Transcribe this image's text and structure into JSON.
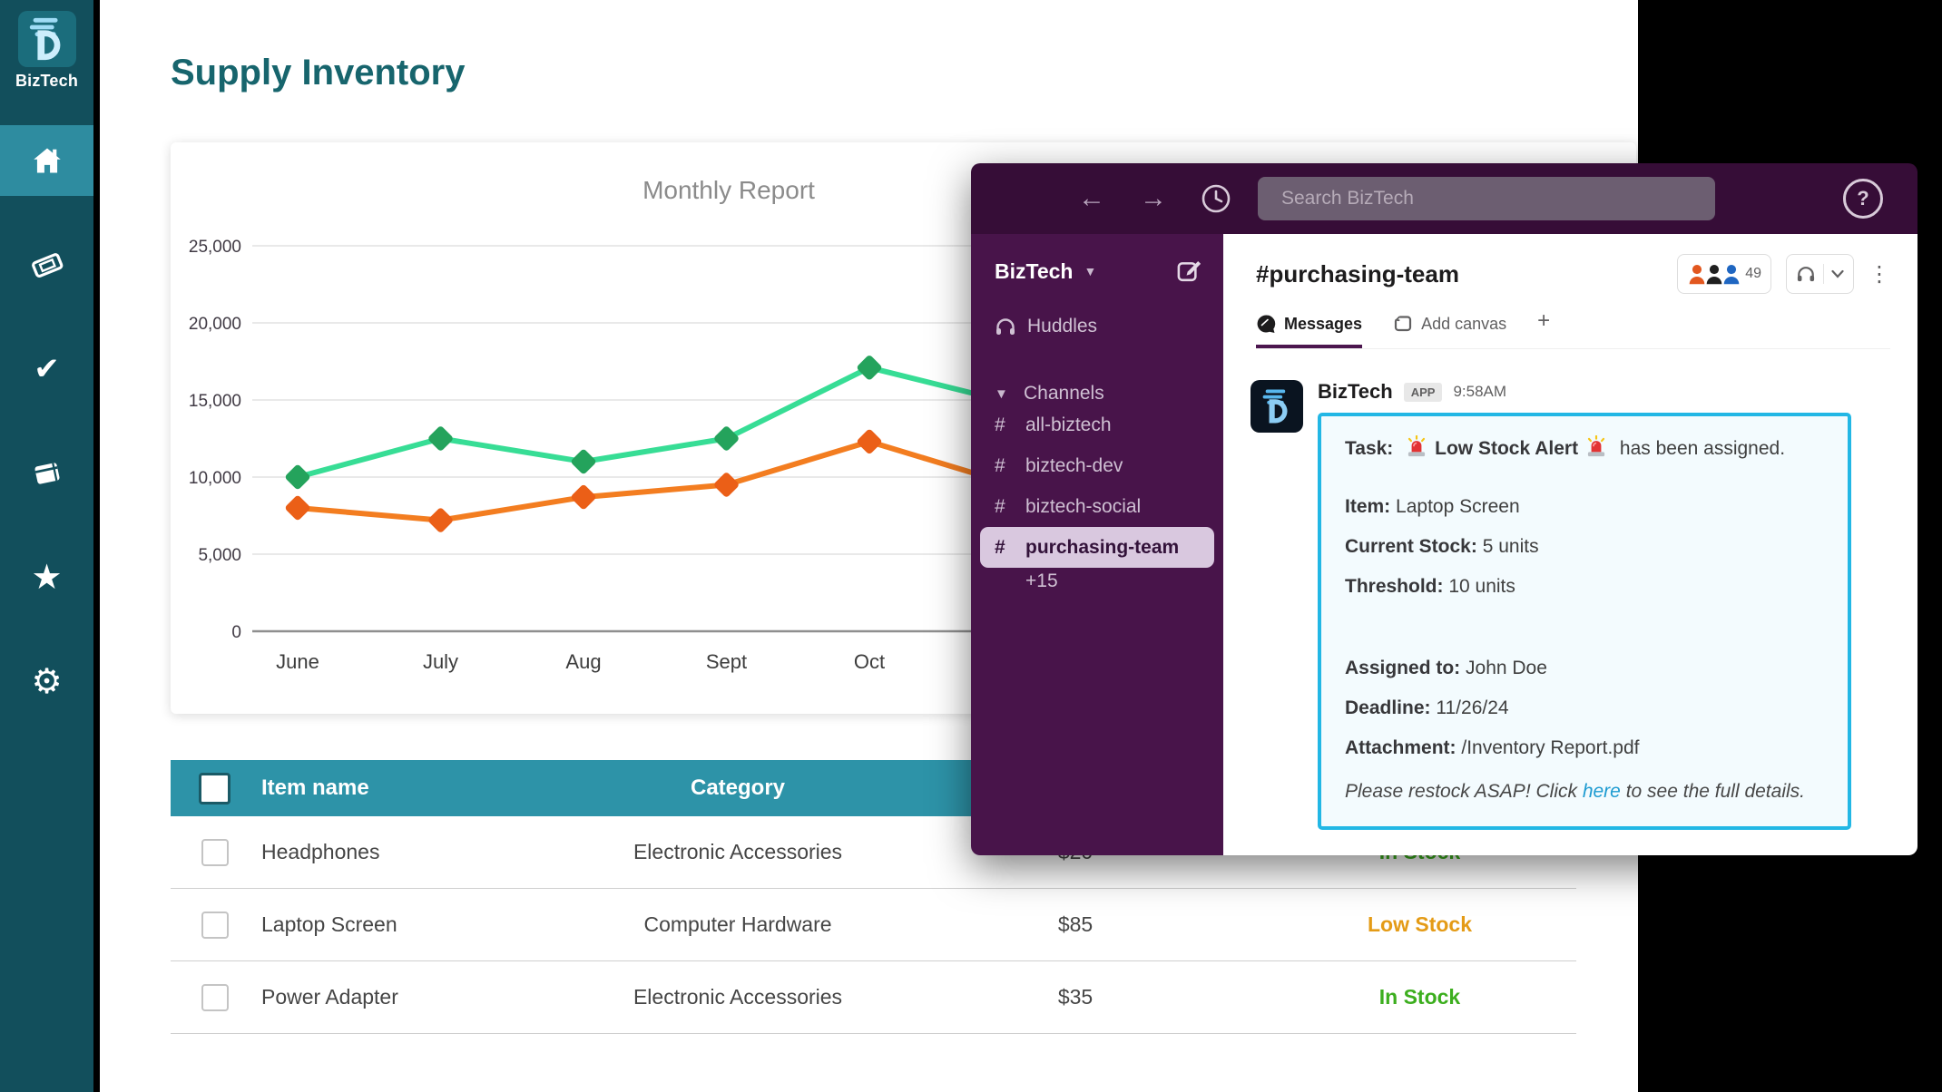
{
  "theme": {
    "sidebar_teal": "#124f5c",
    "sidebar_active_teal": "#2e8ca0",
    "heading_teal": "#17656d",
    "table_header_teal": "#2d93a8",
    "in_stock_green": "#3cae1e",
    "low_stock_amber": "#e49b16",
    "slack_topbar_purple": "#360d37",
    "slack_sidebar_purple": "#48144a",
    "selected_channel_pill": "#d9c8df",
    "alert_border_cyan": "#22b7e5",
    "link_blue": "#1d9bd1"
  },
  "app": {
    "brand": "BizTech",
    "sidebar_icons": [
      "home",
      "ticket",
      "check",
      "book",
      "star",
      "gear"
    ],
    "active_icon": "home"
  },
  "page": {
    "title": "Supply Inventory"
  },
  "chart_data": {
    "type": "line",
    "title": "Monthly Report",
    "categories": [
      "June",
      "July",
      "Aug",
      "Sept",
      "Oct"
    ],
    "series": [
      {
        "name": "green-series",
        "line_color": "#37dd95",
        "marker_color": "#24a35c",
        "values": [
          10000,
          12500,
          11000,
          12500,
          17100
        ]
      },
      {
        "name": "orange-series",
        "line_color": "#f37d20",
        "marker_color": "#eb5f17",
        "values": [
          8000,
          7200,
          8700,
          9500,
          12300
        ]
      }
    ],
    "offscreen_extension": {
      "green-series": 14800,
      "orange-series": 9500,
      "note": "both lines continue past Oct and are hidden behind the overlay window"
    },
    "ylim": [
      0,
      25000
    ],
    "y_ticks": [
      0,
      5000,
      10000,
      15000,
      20000,
      25000
    ],
    "grid": "horizontal",
    "legend": "not visible (hidden behind overlay window)"
  },
  "table": {
    "headers": [
      "Item name",
      "Category"
    ],
    "rows": [
      {
        "item": "Headphones",
        "category": "Electronic Accessories",
        "price": "$20",
        "status": "In Stock",
        "status_type": "in-stock"
      },
      {
        "item": "Laptop Screen",
        "category": "Computer Hardware",
        "price": "$85",
        "status": "Low Stock",
        "status_type": "low-stock"
      },
      {
        "item": "Power Adapter",
        "category": "Electronic Accessories",
        "price": "$35",
        "status": "In Stock",
        "status_type": "in-stock"
      }
    ]
  },
  "slack": {
    "search_placeholder": "Search BizTech",
    "workspace_name": "BizTech",
    "nav": {
      "huddles_label": "Huddles",
      "channels_label": "Channels",
      "channels": [
        "all-biztech",
        "biztech-dev",
        "biztech-social",
        "purchasing-team"
      ],
      "active_channel": "purchasing-team",
      "more_channels": "+15"
    },
    "channel": {
      "name": "#purchasing-team",
      "member_count": "49",
      "tabs": [
        {
          "label": "Messages",
          "active": true
        },
        {
          "label": "Add canvas",
          "active": false
        },
        {
          "label": "+",
          "active": false
        }
      ]
    },
    "message": {
      "sender": "BizTech",
      "badge": "APP",
      "time": "9:58AM",
      "task_line": {
        "label": "Task:",
        "alert_emoji": "🚨",
        "link_text": "Low Stock Alert",
        "suffix": " has been assigned."
      },
      "fields": [
        {
          "label": "Item:",
          "value": "Laptop Screen"
        },
        {
          "label": "Current Stock:",
          "value": "5 units"
        },
        {
          "label": "Threshold:",
          "value": "10 units"
        },
        {
          "label": "Assigned to:",
          "value": "John Doe"
        },
        {
          "label": "Deadline:",
          "value": "11/26/24"
        },
        {
          "label": "Attachment:",
          "value": "/Inventory Report.pdf"
        }
      ],
      "footer": {
        "prefix": "Please restock ASAP! Click ",
        "link_text": "here",
        "suffix": " to see the full details."
      }
    }
  }
}
